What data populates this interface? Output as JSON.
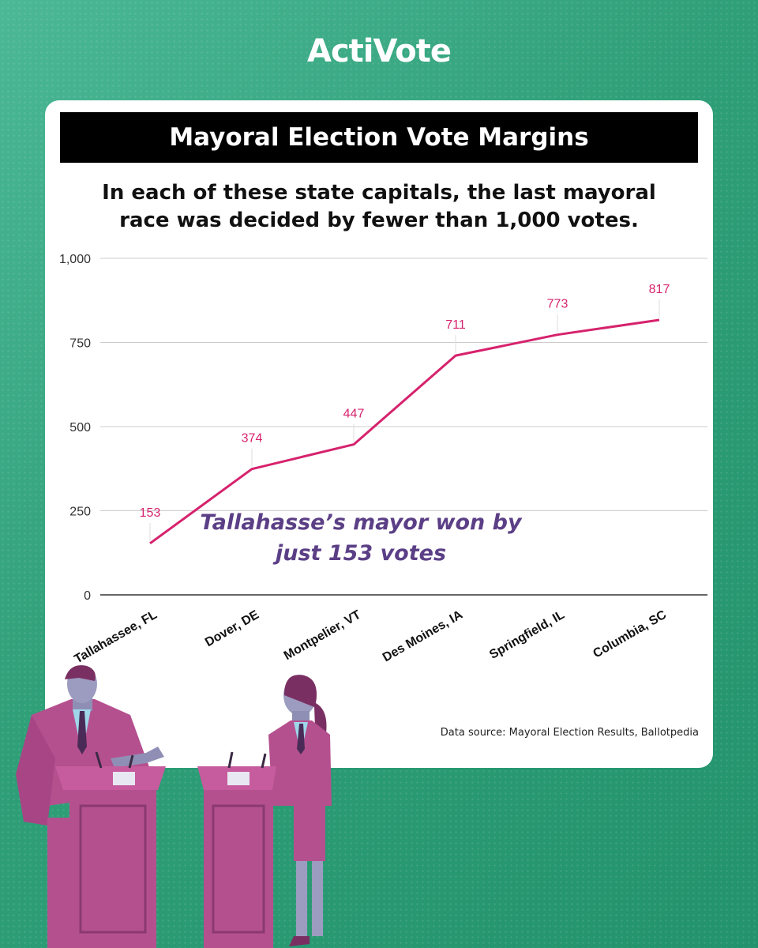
{
  "brand": {
    "logo_text": "ActiVote"
  },
  "colors": {
    "line": "#d6226d",
    "grid": "#cccccc",
    "annotation": "#5b3f86",
    "background": "#2f9f78"
  },
  "chart_data": {
    "type": "line",
    "title": "Mayoral Election Vote Margins",
    "subtitle": "In each of these state capitals, the last mayoral race was decided by fewer than 1,000 votes.",
    "categories": [
      "Tallahassee, FL",
      "Dover, DE",
      "Montpelier, VT",
      "Des Moines, IA",
      "Springfield, IL",
      "Columbia, SC"
    ],
    "values": [
      153,
      374,
      447,
      711,
      773,
      817
    ],
    "data_labels": [
      "153",
      "374",
      "447",
      "711",
      "773",
      "817"
    ],
    "yticks": [
      0,
      250,
      500,
      750,
      1000
    ],
    "ytick_labels": [
      "0",
      "250",
      "500",
      "750",
      "1,000"
    ],
    "ylim": [
      0,
      1000
    ],
    "grid": true,
    "annotation": "Tallahasse’s mayor won by just 153 votes",
    "source": "Data source:  Mayoral Election Results, Ballotpedia"
  }
}
